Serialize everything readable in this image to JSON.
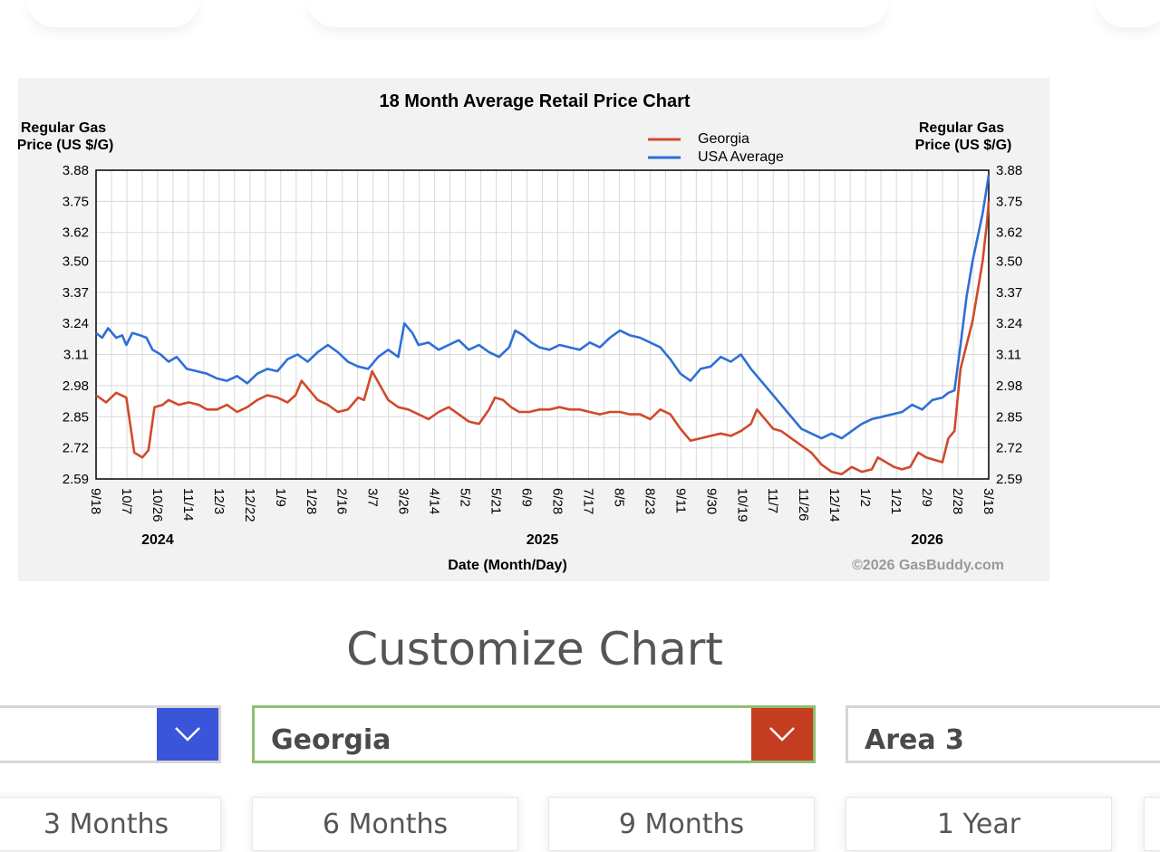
{
  "colors": {
    "georgia": "#d04a2b",
    "usa": "#2f6fd6",
    "accent_blue": "#3a55d9",
    "accent_red": "#c43d20",
    "selected_border": "#8fbf6f"
  },
  "chart_data": {
    "type": "line",
    "title": "18 Month Average Retail Price Chart",
    "ylabel_left": [
      "Regular Gas",
      "Price (US $/G)"
    ],
    "ylabel_right": [
      "Regular Gas",
      "Price (US $/G)"
    ],
    "xlabel": "Date (Month/Day)",
    "watermark": "©2026 GasBuddy.com",
    "ylim": [
      2.59,
      3.88
    ],
    "y_ticks": [
      "3.88",
      "3.75",
      "3.62",
      "3.50",
      "3.37",
      "3.24",
      "3.11",
      "2.98",
      "2.85",
      "2.72",
      "2.59"
    ],
    "x_ticks": [
      "9/18",
      "10/7",
      "10/26",
      "11/14",
      "12/3",
      "12/22",
      "1/9",
      "1/28",
      "2/16",
      "3/7",
      "3/26",
      "4/14",
      "5/2",
      "5/21",
      "6/9",
      "6/28",
      "7/17",
      "8/5",
      "8/23",
      "9/11",
      "9/30",
      "10/19",
      "11/7",
      "11/26",
      "12/14",
      "1/2",
      "1/21",
      "2/9",
      "2/28",
      "3/18"
    ],
    "years": [
      {
        "label": "2024",
        "at_tick": 2
      },
      {
        "label": "2025",
        "at_tick": 14.5
      },
      {
        "label": "2026",
        "at_tick": 27
      }
    ],
    "legend": [
      "Georgia",
      "USA Average"
    ],
    "series": [
      {
        "name": "Georgia",
        "points": [
          [
            0,
            2.94
          ],
          [
            0.5,
            2.91
          ],
          [
            1,
            2.95
          ],
          [
            1.5,
            2.93
          ],
          [
            1.9,
            2.7
          ],
          [
            2.3,
            2.68
          ],
          [
            2.6,
            2.71
          ],
          [
            2.9,
            2.89
          ],
          [
            3.3,
            2.9
          ],
          [
            3.6,
            2.92
          ],
          [
            4.1,
            2.9
          ],
          [
            4.6,
            2.91
          ],
          [
            5.1,
            2.9
          ],
          [
            5.5,
            2.88
          ],
          [
            6,
            2.88
          ],
          [
            6.5,
            2.9
          ],
          [
            7,
            2.87
          ],
          [
            7.5,
            2.89
          ],
          [
            8,
            2.92
          ],
          [
            8.5,
            2.94
          ],
          [
            9,
            2.93
          ],
          [
            9.5,
            2.91
          ],
          [
            9.9,
            2.94
          ],
          [
            10.2,
            3.0
          ],
          [
            10.6,
            2.96
          ],
          [
            11,
            2.92
          ],
          [
            11.5,
            2.9
          ],
          [
            12,
            2.87
          ],
          [
            12.5,
            2.88
          ],
          [
            13,
            2.93
          ],
          [
            13.3,
            2.92
          ],
          [
            13.7,
            3.04
          ],
          [
            14.1,
            2.98
          ],
          [
            14.5,
            2.92
          ],
          [
            15,
            2.89
          ],
          [
            15.5,
            2.88
          ],
          [
            16,
            2.86
          ],
          [
            16.5,
            2.84
          ],
          [
            17,
            2.87
          ],
          [
            17.5,
            2.89
          ],
          [
            18,
            2.86
          ],
          [
            18.5,
            2.83
          ],
          [
            19,
            2.82
          ],
          [
            19.5,
            2.88
          ],
          [
            19.8,
            2.93
          ],
          [
            20.2,
            2.92
          ],
          [
            20.6,
            2.89
          ],
          [
            21,
            2.87
          ],
          [
            21.5,
            2.87
          ],
          [
            22,
            2.88
          ],
          [
            22.5,
            2.88
          ],
          [
            23,
            2.89
          ],
          [
            23.5,
            2.88
          ],
          [
            24,
            2.88
          ],
          [
            24.5,
            2.87
          ],
          [
            25,
            2.86
          ],
          [
            25.5,
            2.87
          ],
          [
            26,
            2.87
          ],
          [
            26.5,
            2.86
          ],
          [
            27,
            2.86
          ],
          [
            27.5,
            2.84
          ],
          [
            28,
            2.88
          ],
          [
            28.5,
            2.86
          ],
          [
            29,
            2.8
          ],
          [
            29.5,
            2.75
          ],
          [
            30,
            2.76
          ],
          [
            30.5,
            2.77
          ],
          [
            31,
            2.78
          ],
          [
            31.5,
            2.77
          ],
          [
            32,
            2.79
          ],
          [
            32.5,
            2.82
          ],
          [
            32.8,
            2.88
          ],
          [
            33.2,
            2.84
          ],
          [
            33.6,
            2.8
          ],
          [
            34,
            2.79
          ],
          [
            34.5,
            2.76
          ],
          [
            35,
            2.73
          ],
          [
            35.5,
            2.7
          ],
          [
            36,
            2.65
          ],
          [
            36.5,
            2.62
          ],
          [
            37,
            2.61
          ],
          [
            37.5,
            2.64
          ],
          [
            38,
            2.62
          ],
          [
            38.5,
            2.63
          ],
          [
            38.8,
            2.68
          ],
          [
            39.2,
            2.66
          ],
          [
            39.6,
            2.64
          ],
          [
            40,
            2.63
          ],
          [
            40.4,
            2.64
          ],
          [
            40.8,
            2.7
          ],
          [
            41.2,
            2.68
          ],
          [
            41.6,
            2.67
          ],
          [
            42,
            2.66
          ],
          [
            42.3,
            2.76
          ],
          [
            42.6,
            2.79
          ],
          [
            42.9,
            3.05
          ],
          [
            43.2,
            3.15
          ],
          [
            43.5,
            3.25
          ],
          [
            43.8,
            3.4
          ],
          [
            44,
            3.5
          ],
          [
            44.1,
            3.58
          ],
          [
            44.2,
            3.65
          ],
          [
            44.3,
            3.75
          ]
        ]
      },
      {
        "name": "USA Average",
        "points": [
          [
            0,
            3.2
          ],
          [
            0.3,
            3.18
          ],
          [
            0.6,
            3.22
          ],
          [
            1,
            3.18
          ],
          [
            1.3,
            3.19
          ],
          [
            1.5,
            3.15
          ],
          [
            1.8,
            3.2
          ],
          [
            2.2,
            3.19
          ],
          [
            2.5,
            3.18
          ],
          [
            2.8,
            3.13
          ],
          [
            3.2,
            3.11
          ],
          [
            3.6,
            3.08
          ],
          [
            4,
            3.1
          ],
          [
            4.5,
            3.05
          ],
          [
            5,
            3.04
          ],
          [
            5.5,
            3.03
          ],
          [
            6,
            3.01
          ],
          [
            6.5,
            3.0
          ],
          [
            7,
            3.02
          ],
          [
            7.5,
            2.99
          ],
          [
            8,
            3.03
          ],
          [
            8.5,
            3.05
          ],
          [
            9,
            3.04
          ],
          [
            9.5,
            3.09
          ],
          [
            10,
            3.11
          ],
          [
            10.5,
            3.08
          ],
          [
            11,
            3.12
          ],
          [
            11.5,
            3.15
          ],
          [
            12,
            3.12
          ],
          [
            12.5,
            3.08
          ],
          [
            13,
            3.06
          ],
          [
            13.5,
            3.05
          ],
          [
            14,
            3.1
          ],
          [
            14.5,
            3.13
          ],
          [
            15,
            3.1
          ],
          [
            15.3,
            3.24
          ],
          [
            15.7,
            3.2
          ],
          [
            16,
            3.15
          ],
          [
            16.5,
            3.16
          ],
          [
            17,
            3.13
          ],
          [
            17.5,
            3.15
          ],
          [
            18,
            3.17
          ],
          [
            18.5,
            3.13
          ],
          [
            19,
            3.15
          ],
          [
            19.5,
            3.12
          ],
          [
            20,
            3.1
          ],
          [
            20.5,
            3.14
          ],
          [
            20.8,
            3.21
          ],
          [
            21.2,
            3.19
          ],
          [
            21.6,
            3.16
          ],
          [
            22,
            3.14
          ],
          [
            22.5,
            3.13
          ],
          [
            23,
            3.15
          ],
          [
            23.5,
            3.14
          ],
          [
            24,
            3.13
          ],
          [
            24.5,
            3.16
          ],
          [
            25,
            3.14
          ],
          [
            25.5,
            3.18
          ],
          [
            26,
            3.21
          ],
          [
            26.5,
            3.19
          ],
          [
            27,
            3.18
          ],
          [
            27.5,
            3.16
          ],
          [
            28,
            3.14
          ],
          [
            28.5,
            3.09
          ],
          [
            29,
            3.03
          ],
          [
            29.5,
            3.0
          ],
          [
            30,
            3.05
          ],
          [
            30.5,
            3.06
          ],
          [
            31,
            3.1
          ],
          [
            31.5,
            3.08
          ],
          [
            32,
            3.11
          ],
          [
            32.5,
            3.05
          ],
          [
            33,
            3.0
          ],
          [
            33.5,
            2.95
          ],
          [
            34,
            2.9
          ],
          [
            34.5,
            2.85
          ],
          [
            35,
            2.8
          ],
          [
            35.5,
            2.78
          ],
          [
            36,
            2.76
          ],
          [
            36.5,
            2.78
          ],
          [
            37,
            2.76
          ],
          [
            37.5,
            2.79
          ],
          [
            38,
            2.82
          ],
          [
            38.5,
            2.84
          ],
          [
            39,
            2.85
          ],
          [
            39.5,
            2.86
          ],
          [
            40,
            2.87
          ],
          [
            40.5,
            2.9
          ],
          [
            41,
            2.88
          ],
          [
            41.5,
            2.92
          ],
          [
            42,
            2.93
          ],
          [
            42.3,
            2.95
          ],
          [
            42.6,
            2.96
          ],
          [
            42.9,
            3.15
          ],
          [
            43.2,
            3.35
          ],
          [
            43.5,
            3.5
          ],
          [
            43.8,
            3.62
          ],
          [
            44,
            3.7
          ],
          [
            44.15,
            3.78
          ],
          [
            44.3,
            3.86
          ]
        ]
      }
    ]
  },
  "customize": {
    "title": "Customize Chart",
    "selects": [
      {
        "value": ""
      },
      {
        "value": "Georgia"
      },
      {
        "value": "Area 3"
      }
    ],
    "ranges": [
      "3 Months",
      "6 Months",
      "9 Months",
      "1 Year"
    ]
  }
}
